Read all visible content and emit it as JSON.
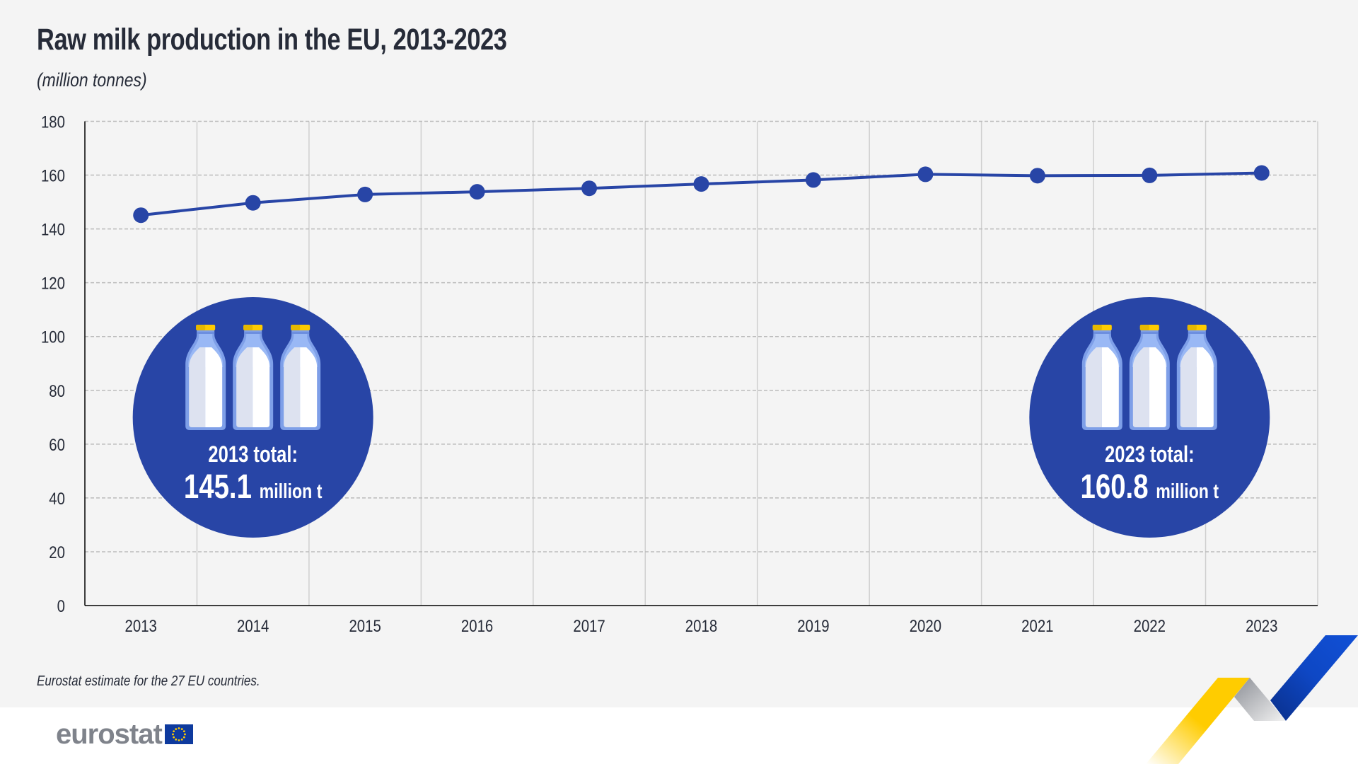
{
  "header": {
    "title": "Raw milk production in the EU, 2013-2023",
    "subtitle": "(million tonnes)"
  },
  "chart_data": {
    "type": "line",
    "title": "Raw milk production in the EU, 2013-2023",
    "subtitle": "(million tonnes)",
    "xlabel": "",
    "ylabel": "million tonnes",
    "categories": [
      "2013",
      "2014",
      "2015",
      "2016",
      "2017",
      "2018",
      "2019",
      "2020",
      "2021",
      "2022",
      "2023"
    ],
    "series": [
      {
        "name": "Raw milk production",
        "color": "#2845a6",
        "values": [
          145.1,
          149.7,
          152.8,
          153.8,
          155.1,
          156.7,
          158.2,
          160.3,
          159.8,
          159.9,
          160.8
        ]
      }
    ],
    "ylim": [
      0,
      180
    ],
    "yticks": [
      0,
      20,
      40,
      60,
      80,
      100,
      120,
      140,
      160,
      180
    ],
    "ytick_labels": [
      "0",
      "20",
      "40",
      "60",
      "80",
      "100",
      "120",
      "140",
      "160",
      "180"
    ],
    "grid": true,
    "legend": "none",
    "annotations": [
      {
        "category": "2014",
        "label": "2013 total:",
        "value": "145.1",
        "unit": "million t",
        "icon": "milk-bottles-icon"
      },
      {
        "category": "2022",
        "label": "2023 total:",
        "value": "160.8",
        "unit": "million t",
        "icon": "milk-bottles-icon"
      }
    ]
  },
  "colors": {
    "line": "#2845a6",
    "bubble": "#2845a6",
    "background": "#f4f4f4",
    "grid": "#bbbbbb",
    "eu_blue": "#0e3a9e",
    "eu_yellow": "#ffcc00"
  },
  "footer": {
    "note": "Eurostat estimate for the 27 EU countries.",
    "logo_text": "eurostat",
    "logo_icon": "eu-flag-icon"
  }
}
